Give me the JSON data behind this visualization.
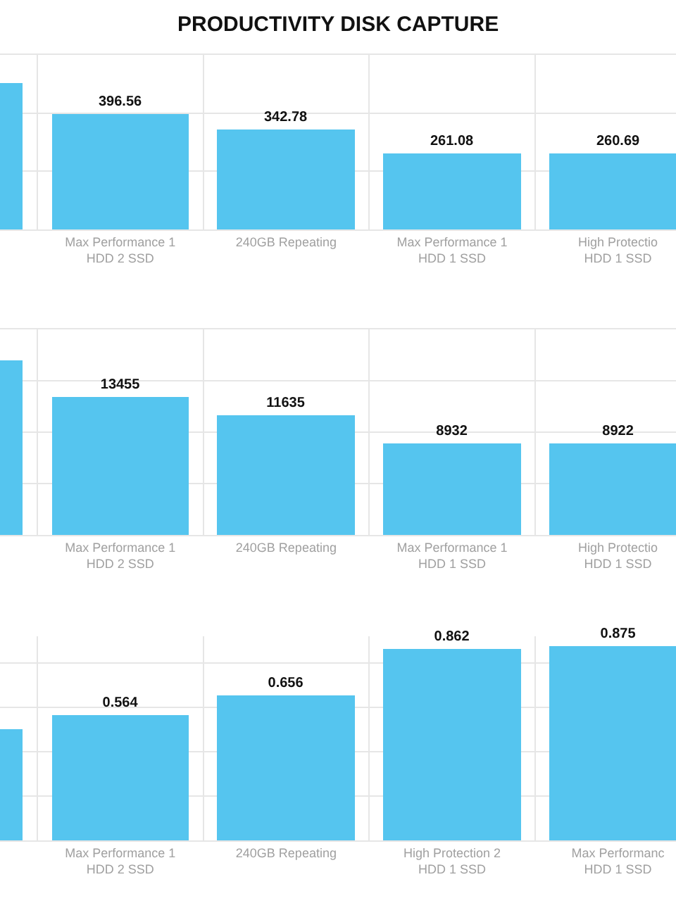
{
  "chart_data": [
    {
      "type": "bar",
      "title": "PRODUCTIVITY DISK CAPTURE",
      "categories": [
        null,
        "Max Performance 1\nHDD 2 SSD",
        "240GB Repeating",
        "Max Performance 1\nHDD 1 SSD",
        "High Protectio\nHDD 1 SSD"
      ],
      "values": [
        505,
        396.56,
        342.78,
        261.08,
        260.69
      ],
      "value_labels": [
        null,
        "396.56",
        "342.78",
        "261.08",
        "260.69"
      ],
      "color": "#55c5ef",
      "ylim": [
        0,
        600
      ],
      "grid": true,
      "tick_labels": "x"
    },
    {
      "type": "bar",
      "categories": [
        null,
        "Max Performance 1\nHDD 2 SSD",
        "240GB Repeating",
        "Max Performance 1\nHDD 1 SSD",
        "High Protectio\nHDD 1 SSD"
      ],
      "values": [
        17000,
        13455,
        11635,
        8932,
        8922
      ],
      "value_labels": [
        null,
        "13455",
        "11635",
        "8932",
        "8922"
      ],
      "color": "#55c5ef",
      "ylim": [
        0,
        20000
      ],
      "grid": true,
      "tick_labels": "x"
    },
    {
      "type": "bar",
      "categories": [
        null,
        "Max Performance 1\nHDD 2 SSD",
        "240GB Repeating",
        "High Protection 2\nHDD 1 SSD",
        "Max Performanc\nHDD 1 SSD"
      ],
      "values": [
        0.5,
        0.564,
        0.656,
        0.862,
        0.875
      ],
      "value_labels": [
        null,
        "0.564",
        "0.656",
        "0.862",
        "0.875"
      ],
      "color": "#55c5ef",
      "grid": true,
      "tick_labels": "x"
    }
  ]
}
